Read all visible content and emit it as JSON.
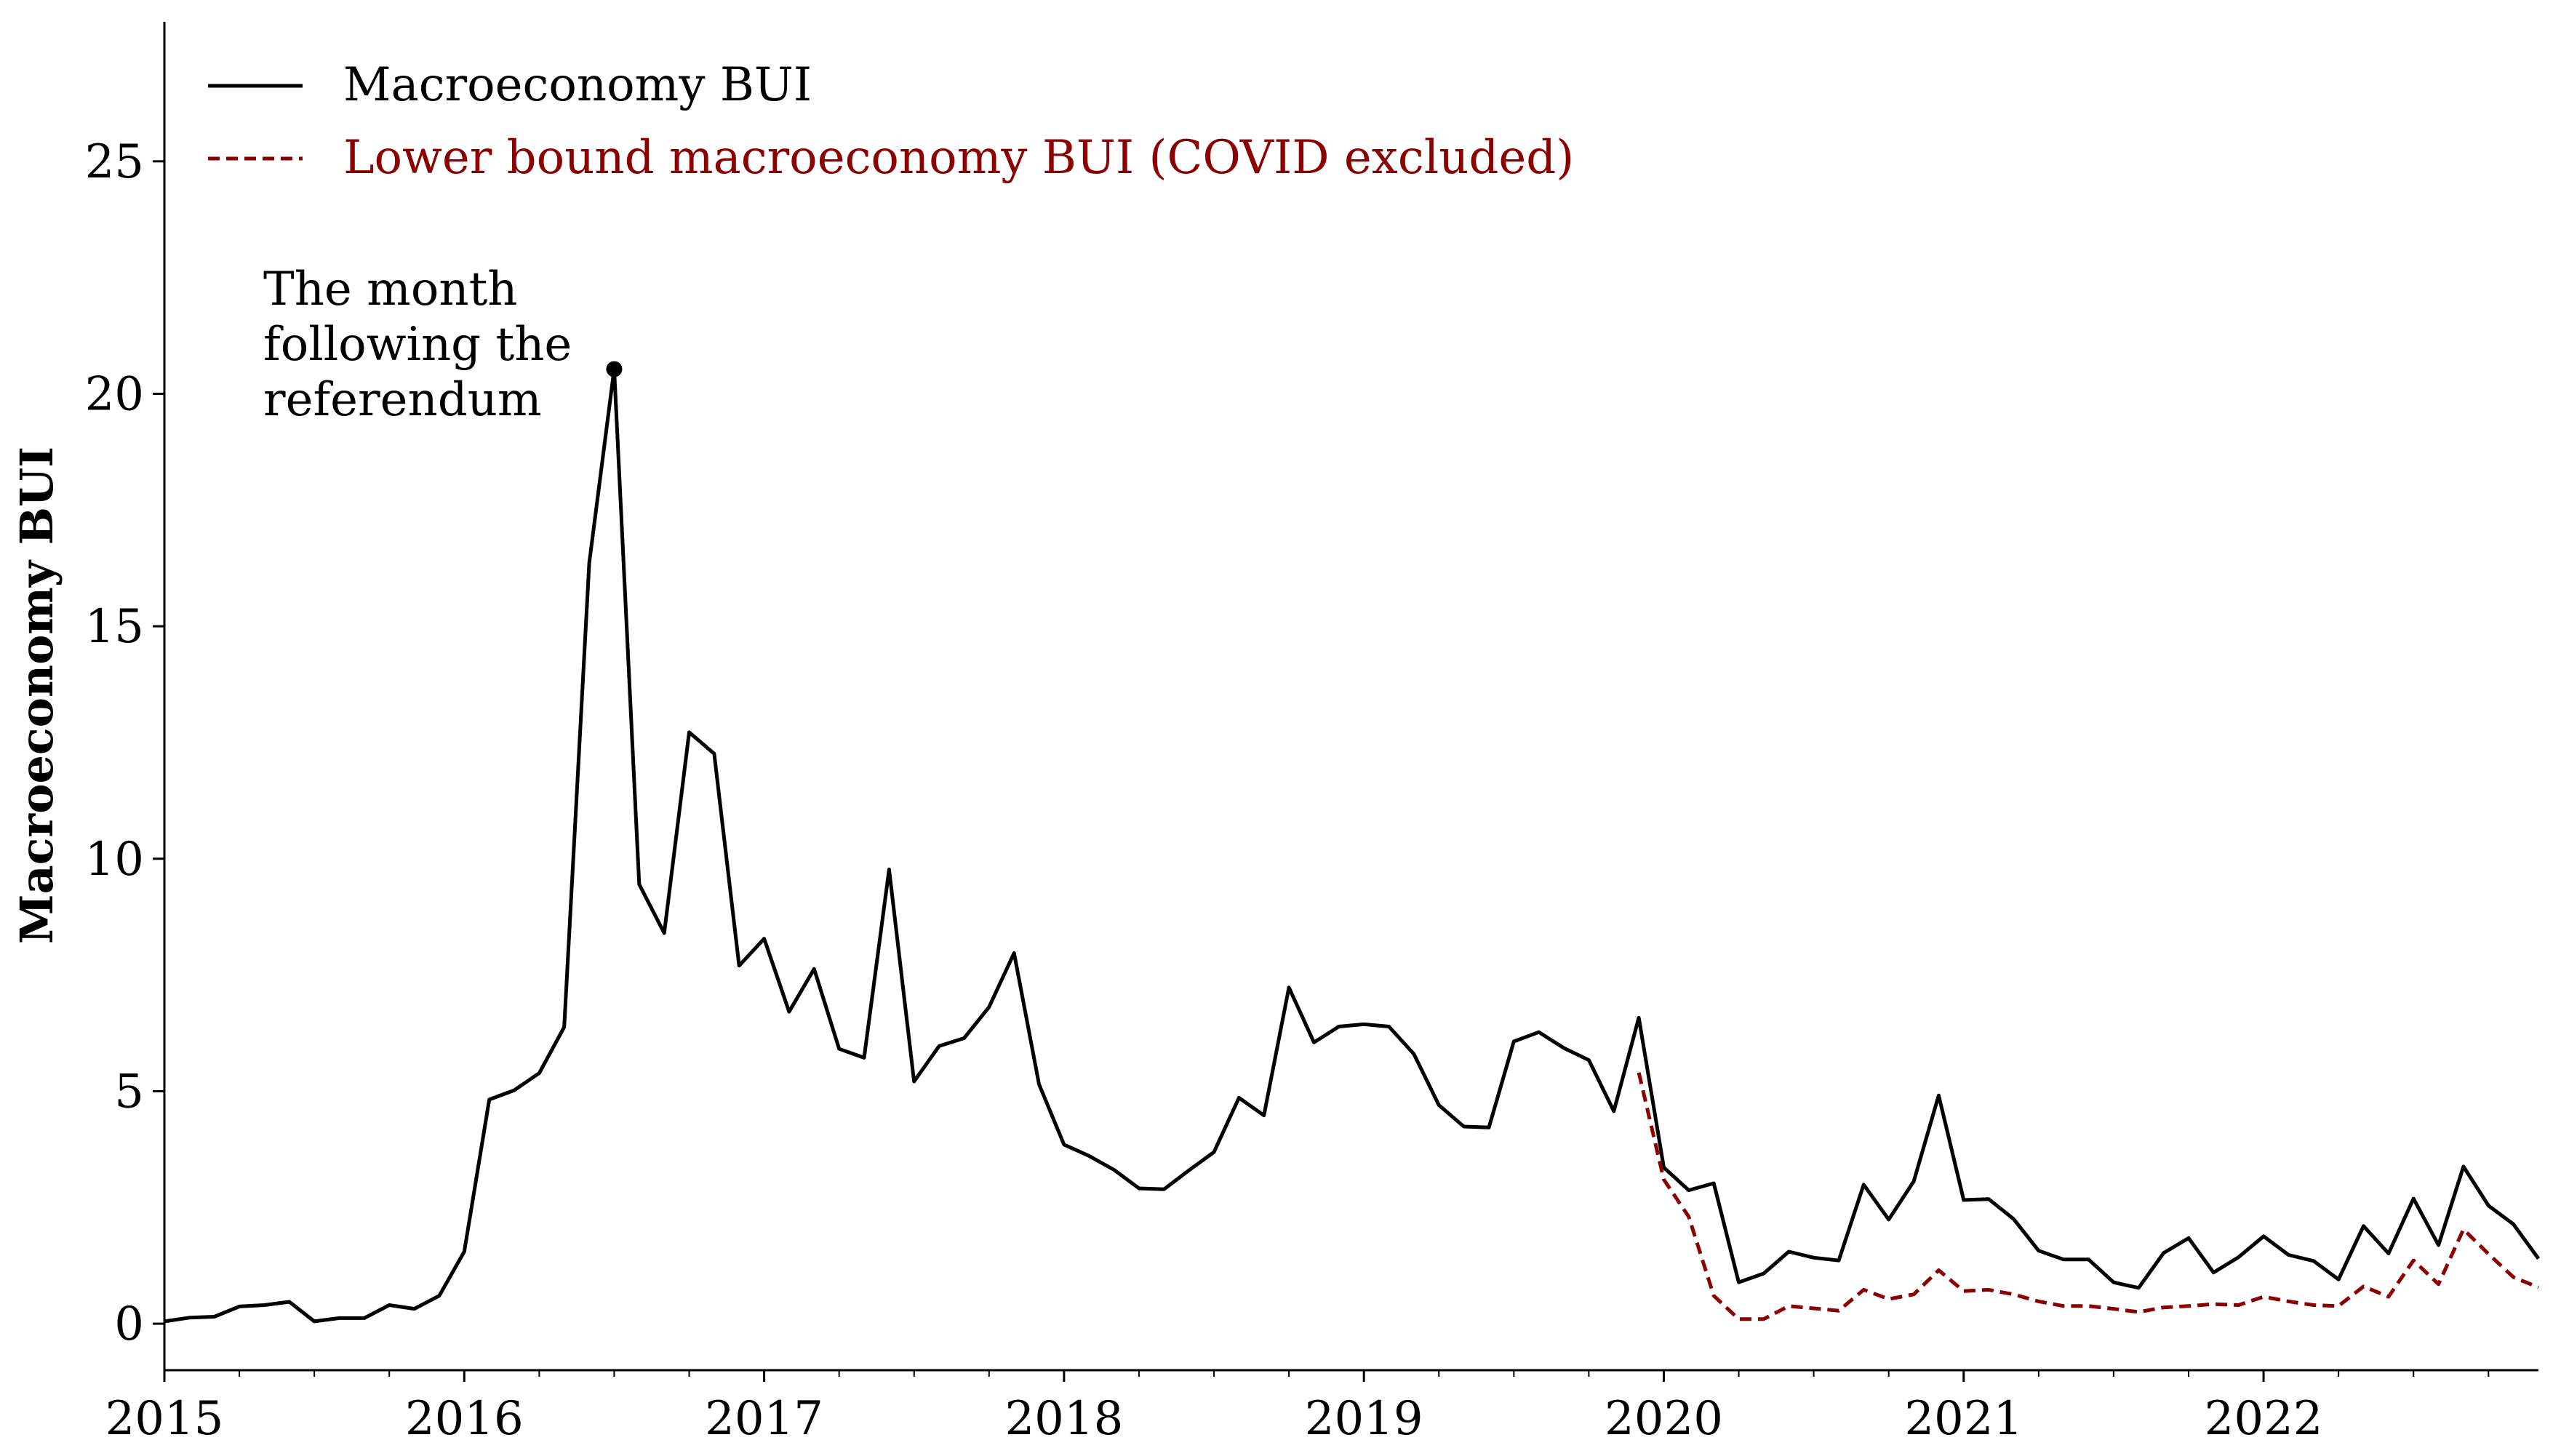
{
  "chart_data": {
    "type": "line",
    "title": "",
    "xlabel": "",
    "ylabel": "Macroeconomy BUI",
    "ylim": [
      -1,
      28
    ],
    "xlim": [
      "2015-01",
      "2022-12"
    ],
    "x_ticks": [
      "2015",
      "2016",
      "2017",
      "2018",
      "2019",
      "2020",
      "2021",
      "2022"
    ],
    "y_ticks": [
      "0",
      "5",
      "10",
      "15",
      "20",
      "25"
    ],
    "grid": false,
    "legend_position": "top-left",
    "series": [
      {
        "name": "Macroeconomy BUI",
        "color": "#000000",
        "dash": "solid",
        "start": "2015-01",
        "values": [
          0.05,
          0.13,
          0.15,
          0.37,
          0.4,
          0.47,
          0.05,
          0.12,
          0.12,
          0.4,
          0.32,
          0.6,
          1.55,
          4.82,
          5.02,
          5.39,
          6.38,
          16.36,
          20.53,
          9.45,
          8.4,
          12.72,
          12.26,
          7.7,
          8.28,
          6.71,
          7.63,
          5.91,
          5.72,
          9.77,
          5.21,
          5.97,
          6.14,
          6.81,
          7.97,
          5.15,
          3.85,
          3.61,
          3.31,
          2.91,
          2.89,
          3.3,
          3.69,
          4.86,
          4.48,
          7.23,
          6.05,
          6.39,
          6.44,
          6.39,
          5.8,
          4.7,
          4.24,
          4.22,
          6.07,
          6.27,
          5.93,
          5.67,
          4.57,
          6.58,
          3.36,
          2.87,
          3.02,
          0.89,
          1.08,
          1.55,
          1.42,
          1.36,
          2.99,
          2.24,
          3.06,
          4.91,
          2.66,
          2.68,
          2.25,
          1.57,
          1.38,
          1.38,
          0.89,
          0.77,
          1.52,
          1.84,
          1.1,
          1.43,
          1.88,
          1.48,
          1.35,
          0.95,
          2.1,
          1.51,
          2.69,
          1.69,
          3.38,
          2.54,
          2.14,
          1.4
        ]
      },
      {
        "name": "Lower bound macroeconomy BUI (COVID excluded)",
        "color": "#8b0000",
        "dash": "dashed",
        "start": "2019-12",
        "values": [
          5.4,
          3.1,
          2.3,
          0.6,
          0.1,
          0.1,
          0.38,
          0.33,
          0.28,
          0.73,
          0.53,
          0.63,
          1.15,
          0.7,
          0.73,
          0.63,
          0.48,
          0.38,
          0.38,
          0.32,
          0.25,
          0.35,
          0.38,
          0.42,
          0.4,
          0.58,
          0.48,
          0.4,
          0.38,
          0.8,
          0.58,
          1.36,
          0.85,
          2.03,
          1.5,
          1.0,
          0.78
        ]
      }
    ],
    "annotations": [
      {
        "text_lines": [
          "The month",
          "following the",
          "referendum"
        ],
        "x": "2016-07",
        "y": 20.53,
        "marker": "dot"
      }
    ]
  }
}
